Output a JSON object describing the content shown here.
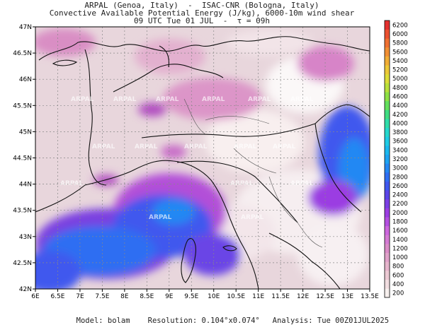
{
  "header": {
    "line1": "ARPAL (Genoa, Italy)  -  ISAC-CNR (Bologna, Italy)",
    "line2": "Convective Available Potential Energy (J/kg), 6000-10m wind shear",
    "line3": "09 UTC Tue 01 JUL  -  τ = 09h"
  },
  "map": {
    "lat_labels": [
      "47N",
      "46.5N",
      "46N",
      "45.5N",
      "45N",
      "44.5N",
      "44N",
      "43.5N",
      "43N",
      "42.5N",
      "42N"
    ],
    "lon_labels": [
      "6E",
      "6.5E",
      "7E",
      "7.5E",
      "8E",
      "8.5E",
      "9E",
      "9.5E",
      "10E",
      "10.5E",
      "11E",
      "11.5E",
      "12E",
      "12.5E",
      "13E",
      "13.5E"
    ],
    "watermark": "ARPAL"
  },
  "colorbar": {
    "levels": [
      "200",
      "400",
      "600",
      "800",
      "1000",
      "1200",
      "1400",
      "1600",
      "1800",
      "2000",
      "2200",
      "2400",
      "2600",
      "2800",
      "3000",
      "3200",
      "3400",
      "3600",
      "3800",
      "4000",
      "4200",
      "4400",
      "4600",
      "4800",
      "5000",
      "5200",
      "5400",
      "5600",
      "5800",
      "6000",
      "6200"
    ],
    "colors": [
      "#f7f0ee",
      "#f1dde0",
      "#ecc9d3",
      "#e6b5cc",
      "#e0a1c9",
      "#da8cc7",
      "#d47ad3",
      "#cc66dd",
      "#b34fe0",
      "#9b3ee2",
      "#7b3fe4",
      "#5a45e8",
      "#3f58ee",
      "#2f6ef2",
      "#2488f3",
      "#1da3f2",
      "#1bb8ee",
      "#1fcbe4",
      "#25d7cc",
      "#2fdca9",
      "#3fdd82",
      "#63df5c",
      "#8ee045",
      "#b9e03b",
      "#dcdc38",
      "#ecc838",
      "#f1ad36",
      "#f18f34",
      "#ef7032",
      "#eb5030",
      "#e4302f"
    ]
  },
  "footer": {
    "model_label": "Model:",
    "model_value": "bolam",
    "resolution_label": "Resolution:",
    "resolution_value": "0.104°x0.074°",
    "analysis_label": "Analysis:",
    "analysis_value": "Tue 00Z01JUL2025"
  }
}
